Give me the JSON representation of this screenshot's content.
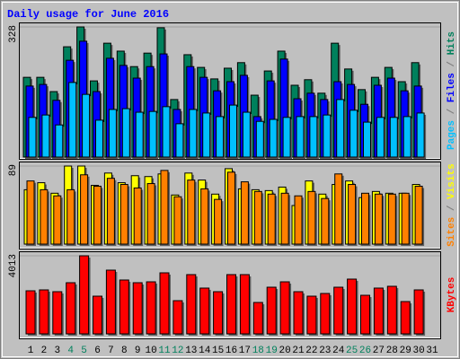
{
  "title": "Daily usage for June 2016",
  "chart_data": [
    {
      "type": "bar",
      "ylim": [
        0,
        328
      ],
      "yticks": [
        328
      ],
      "legend_separator": " / ",
      "separator_color": "#808080",
      "series": [
        {
          "name": "Hits",
          "color": "#00805c",
          "values": [
            201,
            201,
            165,
            278,
            328,
            192,
            287,
            267,
            228,
            262,
            326,
            145,
            258,
            226,
            197,
            224,
            238,
            156,
            217,
            267,
            181,
            195,
            161,
            287,
            222,
            170,
            201,
            226,
            190,
            238,
            null
          ]
        },
        {
          "name": "Files",
          "color": "#0000ff",
          "values": [
            179,
            183,
            143,
            244,
            292,
            165,
            249,
            231,
            199,
            228,
            260,
            120,
            228,
            201,
            167,
            190,
            206,
            102,
            192,
            247,
            147,
            161,
            145,
            190,
            183,
            133,
            181,
            199,
            167,
            179,
            null
          ]
        },
        {
          "name": "Pages",
          "color": "#00c0ff",
          "values": [
            100,
            106,
            81,
            188,
            158,
            93,
            120,
            122,
            113,
            115,
            127,
            84,
            120,
            111,
            102,
            131,
            113,
            90,
            95,
            100,
            102,
            102,
            106,
            145,
            118,
            88,
            100,
            100,
            102,
            111,
            null
          ]
        }
      ]
    },
    {
      "type": "bar",
      "ylim": [
        0,
        89
      ],
      "yticks": [
        89
      ],
      "legend_separator": " / ",
      "separator_color": "#808080",
      "series": [
        {
          "name": "Visits",
          "color": "#ffff00",
          "values": [
            62,
            70,
            58,
            89,
            89,
            67,
            81,
            70,
            78,
            77,
            80,
            56,
            81,
            73,
            57,
            86,
            63,
            62,
            61,
            65,
            44,
            72,
            57,
            68,
            72,
            53,
            60,
            58,
            58,
            68,
            null
          ]
        },
        {
          "name": "Sites",
          "color": "#ff8000",
          "values": [
            72,
            62,
            55,
            62,
            79,
            66,
            75,
            68,
            64,
            69,
            84,
            54,
            73,
            63,
            51,
            82,
            71,
            60,
            57,
            58,
            55,
            60,
            52,
            80,
            68,
            58,
            57,
            57,
            58,
            66,
            null
          ]
        }
      ]
    },
    {
      "type": "bar",
      "ylim": [
        0,
        4013
      ],
      "yticks": [
        4013
      ],
      "categories": [
        "1",
        "2",
        "3",
        "4",
        "5",
        "6",
        "7",
        "8",
        "9",
        "10",
        "11",
        "12",
        "13",
        "14",
        "15",
        "16",
        "17",
        "18",
        "19",
        "20",
        "21",
        "22",
        "23",
        "24",
        "25",
        "26",
        "27",
        "28",
        "29",
        "30",
        "31"
      ],
      "category_colors": [
        "#000000",
        "#000000",
        "#000000",
        "#00805c",
        "#00805c",
        "#000000",
        "#000000",
        "#000000",
        "#000000",
        "#000000",
        "#00805c",
        "#00805c",
        "#000000",
        "#000000",
        "#000000",
        "#000000",
        "#000000",
        "#00805c",
        "#00805c",
        "#000000",
        "#000000",
        "#000000",
        "#000000",
        "#000000",
        "#00805c",
        "#00805c",
        "#000000",
        "#000000",
        "#000000",
        "#000000",
        "#000000"
      ],
      "series": [
        {
          "name": "KBytes",
          "color": "#ff0000",
          "values": [
            2214,
            2260,
            2168,
            2629,
            4013,
            1937,
            3275,
            2768,
            2629,
            2675,
            3137,
            1706,
            3045,
            2353,
            2168,
            3045,
            3045,
            1614,
            2398,
            2675,
            2168,
            1937,
            2076,
            2398,
            2814,
            1983,
            2353,
            2445,
            1660,
            2260,
            null
          ]
        }
      ]
    }
  ]
}
